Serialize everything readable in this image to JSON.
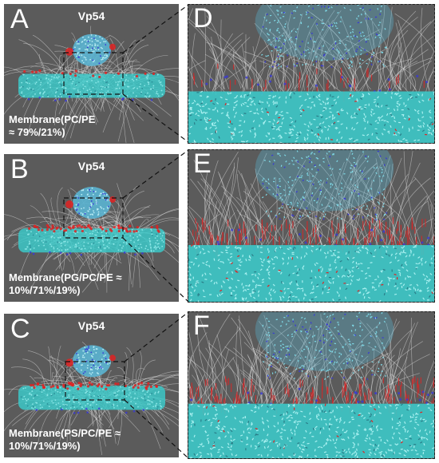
{
  "rows": [
    {
      "left_letter": "A",
      "protein": "Vp54",
      "membrane": "Membrane(PC/PE\n≈ 79%/21%)",
      "right_letter": "D",
      "lipid_color": "#d93030",
      "anionic_intensity": 0.15
    },
    {
      "left_letter": "B",
      "protein": "Vp54",
      "membrane": "Membrane(PG/PC/PE ≈\n10%/71%/19%)",
      "right_letter": "E",
      "lipid_color": "#e62020",
      "anionic_intensity": 0.85
    },
    {
      "left_letter": "C",
      "protein": "Vp54",
      "membrane": "Membrane(PS/PC/PE ≈\n10%/71%/19%)",
      "right_letter": "F",
      "lipid_color": "#e02222",
      "anionic_intensity": 0.75
    }
  ],
  "colors": {
    "panel_bg": "#5b5b5b",
    "membrane": "#3cc8c8",
    "protein": "#5ab4d2",
    "field_lines": "#e8e8e8",
    "positive": "#3838d8",
    "negative": "#e02222"
  }
}
